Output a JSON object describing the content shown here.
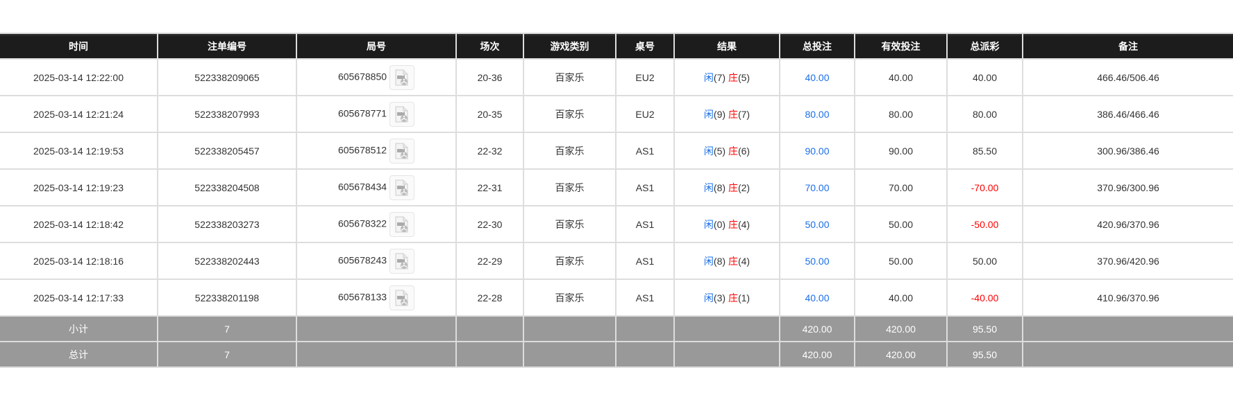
{
  "columns": [
    "时间",
    "注单编号",
    "局号",
    "场次",
    "游戏类别",
    "桌号",
    "结果",
    "总投注",
    "有效投注",
    "总派彩",
    "备注"
  ],
  "rows": [
    {
      "time": "2025-03-14 12:22:00",
      "bet_id": "522338209065",
      "round": "605678850",
      "shoe": "20-36",
      "game": "百家乐",
      "table": "EU2",
      "player_label": "闲",
      "player": "(7)",
      "banker_label": "庄",
      "banker": "(5)",
      "total_bet": "40.00",
      "valid_bet": "40.00",
      "payout": "40.00",
      "payout_negative": false,
      "note": "466.46/506.46"
    },
    {
      "time": "2025-03-14 12:21:24",
      "bet_id": "522338207993",
      "round": "605678771",
      "shoe": "20-35",
      "game": "百家乐",
      "table": "EU2",
      "player_label": "闲",
      "player": "(9)",
      "banker_label": "庄",
      "banker": "(7)",
      "total_bet": "80.00",
      "valid_bet": "80.00",
      "payout": "80.00",
      "payout_negative": false,
      "note": "386.46/466.46"
    },
    {
      "time": "2025-03-14 12:19:53",
      "bet_id": "522338205457",
      "round": "605678512",
      "shoe": "22-32",
      "game": "百家乐",
      "table": "AS1",
      "player_label": "闲",
      "player": "(5)",
      "banker_label": "庄",
      "banker": "(6)",
      "total_bet": "90.00",
      "valid_bet": "90.00",
      "payout": "85.50",
      "payout_negative": false,
      "note": "300.96/386.46"
    },
    {
      "time": "2025-03-14 12:19:23",
      "bet_id": "522338204508",
      "round": "605678434",
      "shoe": "22-31",
      "game": "百家乐",
      "table": "AS1",
      "player_label": "闲",
      "player": "(8)",
      "banker_label": "庄",
      "banker": "(2)",
      "total_bet": "70.00",
      "valid_bet": "70.00",
      "payout": "-70.00",
      "payout_negative": true,
      "note": "370.96/300.96"
    },
    {
      "time": "2025-03-14 12:18:42",
      "bet_id": "522338203273",
      "round": "605678322",
      "shoe": "22-30",
      "game": "百家乐",
      "table": "AS1",
      "player_label": "闲",
      "player": "(0)",
      "banker_label": "庄",
      "banker": "(4)",
      "total_bet": "50.00",
      "valid_bet": "50.00",
      "payout": "-50.00",
      "payout_negative": true,
      "note": "420.96/370.96"
    },
    {
      "time": "2025-03-14 12:18:16",
      "bet_id": "522338202443",
      "round": "605678243",
      "shoe": "22-29",
      "game": "百家乐",
      "table": "AS1",
      "player_label": "闲",
      "player": "(8)",
      "banker_label": "庄",
      "banker": "(4)",
      "total_bet": "50.00",
      "valid_bet": "50.00",
      "payout": "50.00",
      "payout_negative": false,
      "note": "370.96/420.96"
    },
    {
      "time": "2025-03-14 12:17:33",
      "bet_id": "522338201198",
      "round": "605678133",
      "shoe": "22-28",
      "game": "百家乐",
      "table": "AS1",
      "player_label": "闲",
      "player": "(3)",
      "banker_label": "庄",
      "banker": "(1)",
      "total_bet": "40.00",
      "valid_bet": "40.00",
      "payout": "-40.00",
      "payout_negative": true,
      "note": "410.96/370.96"
    }
  ],
  "subtotal": {
    "label": "小计",
    "count": "7",
    "total_bet": "420.00",
    "valid_bet": "420.00",
    "payout": "95.50"
  },
  "total": {
    "label": "总计",
    "count": "7",
    "total_bet": "420.00",
    "valid_bet": "420.00",
    "payout": "95.50"
  },
  "colors": {
    "header_bg": "#1c1c1c",
    "footer_bg": "#999999",
    "player": "#1a6fe8",
    "banker": "#ff0000",
    "negative": "#ff0000",
    "total_bet": "#1a6fe8"
  },
  "icons": {
    "replay": "video-file-icon"
  }
}
